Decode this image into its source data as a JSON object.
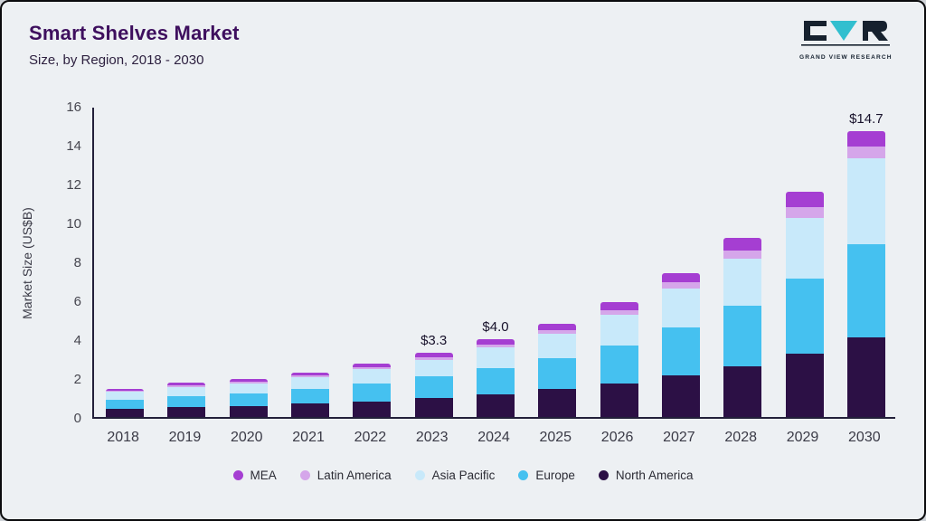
{
  "header": {
    "title": "Smart Shelves Market",
    "subtitle": "Size, by Region, 2018 - 2030"
  },
  "logo": {
    "text": "GRAND VIEW RESEARCH"
  },
  "chart_data": {
    "type": "bar",
    "stacked": true,
    "title": "Smart Shelves Market Size, by Region, 2018 - 2030",
    "ylabel": "Market Size (US$B)",
    "ylim": [
      0,
      16
    ],
    "ytick_step": 2,
    "grid": false,
    "legend_position": "bottom",
    "categories": [
      "2018",
      "2019",
      "2020",
      "2021",
      "2022",
      "2023",
      "2024",
      "2025",
      "2026",
      "2027",
      "2028",
      "2029",
      "2030"
    ],
    "series_order": "bottom-to-top",
    "series": [
      {
        "name": "North America",
        "color": "#2c1045",
        "values": [
          0.42,
          0.51,
          0.57,
          0.68,
          0.81,
          0.98,
          1.18,
          1.42,
          1.74,
          2.12,
          2.6,
          3.25,
          4.1
        ]
      },
      {
        "name": "Europe",
        "color": "#45c1f0",
        "values": [
          0.48,
          0.58,
          0.65,
          0.76,
          0.91,
          1.09,
          1.32,
          1.59,
          1.95,
          2.5,
          3.1,
          3.85,
          4.8
        ]
      },
      {
        "name": "Asia Pacific",
        "color": "#c8e9fa",
        "values": [
          0.38,
          0.46,
          0.51,
          0.61,
          0.73,
          0.87,
          1.06,
          1.27,
          1.57,
          2.0,
          2.45,
          3.15,
          4.4
        ]
      },
      {
        "name": "Latin America",
        "color": "#d5a6ea",
        "values": [
          0.07,
          0.08,
          0.09,
          0.1,
          0.12,
          0.14,
          0.17,
          0.2,
          0.25,
          0.3,
          0.4,
          0.55,
          0.6
        ]
      },
      {
        "name": "MEA",
        "color": "#a53ed2",
        "values": [
          0.1,
          0.12,
          0.13,
          0.15,
          0.18,
          0.22,
          0.27,
          0.32,
          0.39,
          0.48,
          0.65,
          0.8,
          0.8
        ]
      }
    ],
    "totals": [
      1.45,
      1.75,
      1.95,
      2.3,
      2.75,
      3.3,
      4.0,
      4.8,
      5.9,
      7.4,
      9.2,
      11.6,
      14.7
    ],
    "annotations": [
      {
        "category": "2023",
        "label": "$3.3"
      },
      {
        "category": "2024",
        "label": "$4.0"
      },
      {
        "category": "2030",
        "label": "$14.7"
      }
    ]
  }
}
